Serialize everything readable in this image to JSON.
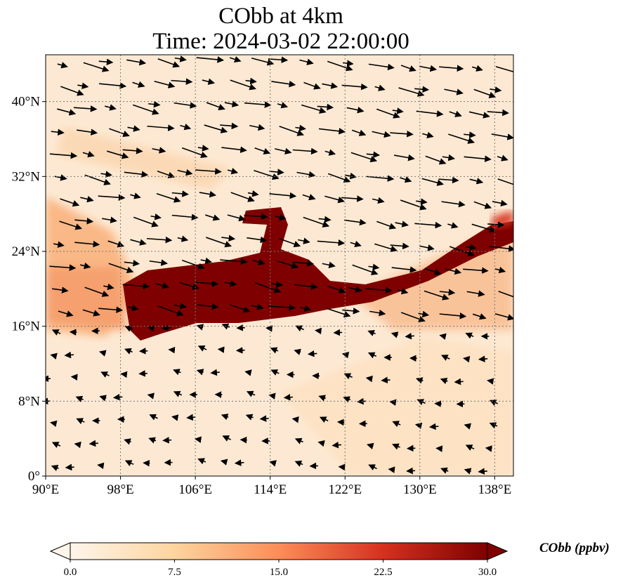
{
  "title_line1": "CObb at 4km",
  "title_line2": "Time: 2024-03-02 22:00:00",
  "map": {
    "lon_range": [
      90,
      140
    ],
    "lat_range": [
      0,
      45
    ],
    "lon_ticks": [
      90,
      98,
      106,
      114,
      122,
      130,
      138
    ],
    "lon_tick_labels": [
      "90°E",
      "98°E",
      "106°E",
      "114°E",
      "122°E",
      "130°E",
      "138°E"
    ],
    "lat_ticks": [
      0,
      8,
      16,
      24,
      32,
      40
    ],
    "lat_tick_labels": [
      "0°",
      "8°N",
      "16°N",
      "24°N",
      "32°N",
      "40°N"
    ],
    "gridlines": "dotted"
  },
  "colorbar": {
    "label": "CObb (ppbv)",
    "range": [
      0,
      30
    ],
    "ticks": [
      "0.0",
      "7.5",
      "15.0",
      "22.5",
      "30.0"
    ],
    "colors": [
      "#fff5eb",
      "#fdd49e",
      "#fc8d59",
      "#d7301f",
      "#7f0000"
    ],
    "extend": "both"
  }
}
